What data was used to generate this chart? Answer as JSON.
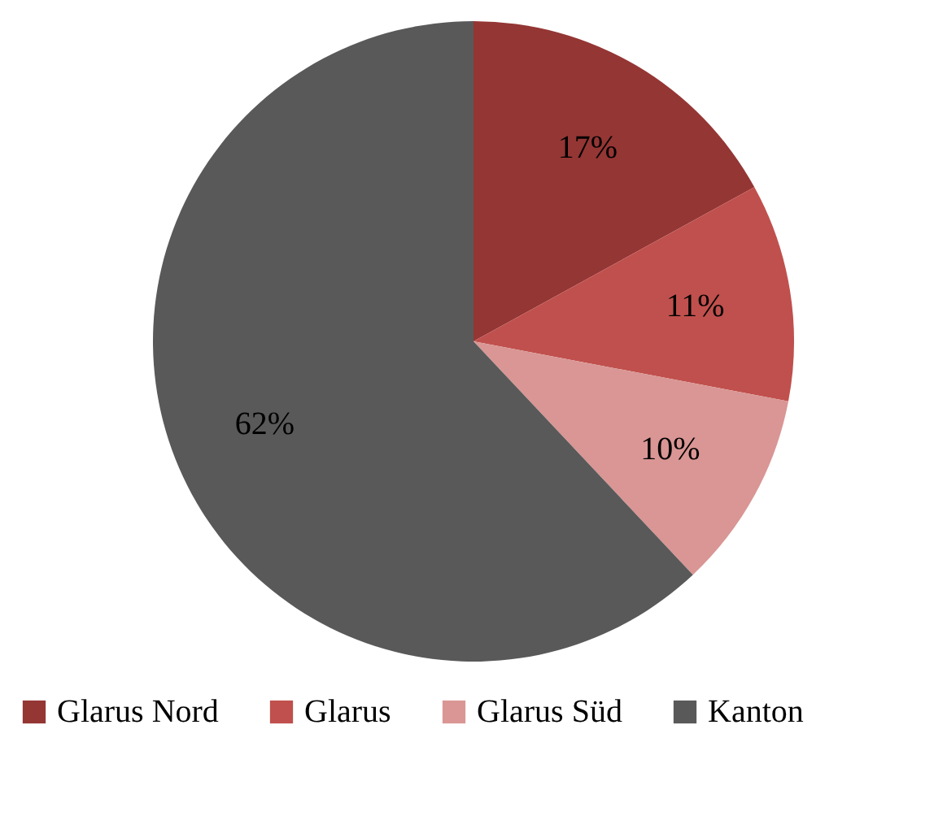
{
  "chart_data": {
    "type": "pie",
    "categories": [
      "Glarus Nord",
      "Glarus",
      "Glarus Süd",
      "Kanton"
    ],
    "values": [
      17,
      11,
      10,
      62
    ],
    "value_labels": [
      "17%",
      "11%",
      "10%",
      "62%"
    ],
    "colors": [
      "#943634",
      "#c0504d",
      "#d99694",
      "#595959"
    ],
    "legend": "bottom"
  }
}
